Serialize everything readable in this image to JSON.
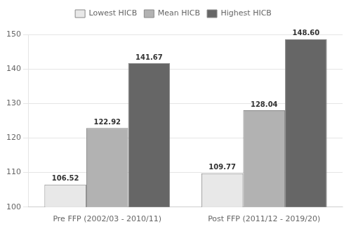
{
  "chart_data": {
    "type": "bar",
    "categories": [
      "Pre FFP (2002/03 - 2010/11)",
      "Post FFP (2011/12 - 2019/20)"
    ],
    "series": [
      {
        "name": "Lowest HICB",
        "color": "#e8e8e8",
        "values": [
          106.52,
          109.77
        ],
        "value_labels": [
          "106.52",
          "109.77"
        ]
      },
      {
        "name": "Mean HICB",
        "color": "#b2b2b2",
        "values": [
          122.92,
          128.04
        ],
        "value_labels": [
          "122.92",
          "128.04"
        ]
      },
      {
        "name": "Highest HICB",
        "color": "#666666",
        "values": [
          141.67,
          148.6
        ],
        "value_labels": [
          "141.67",
          "148.60"
        ]
      }
    ],
    "ylim": [
      100,
      150
    ],
    "yticks": [
      100,
      110,
      120,
      130,
      140,
      150
    ],
    "grid": true,
    "legend": "top",
    "data_labels": true
  }
}
